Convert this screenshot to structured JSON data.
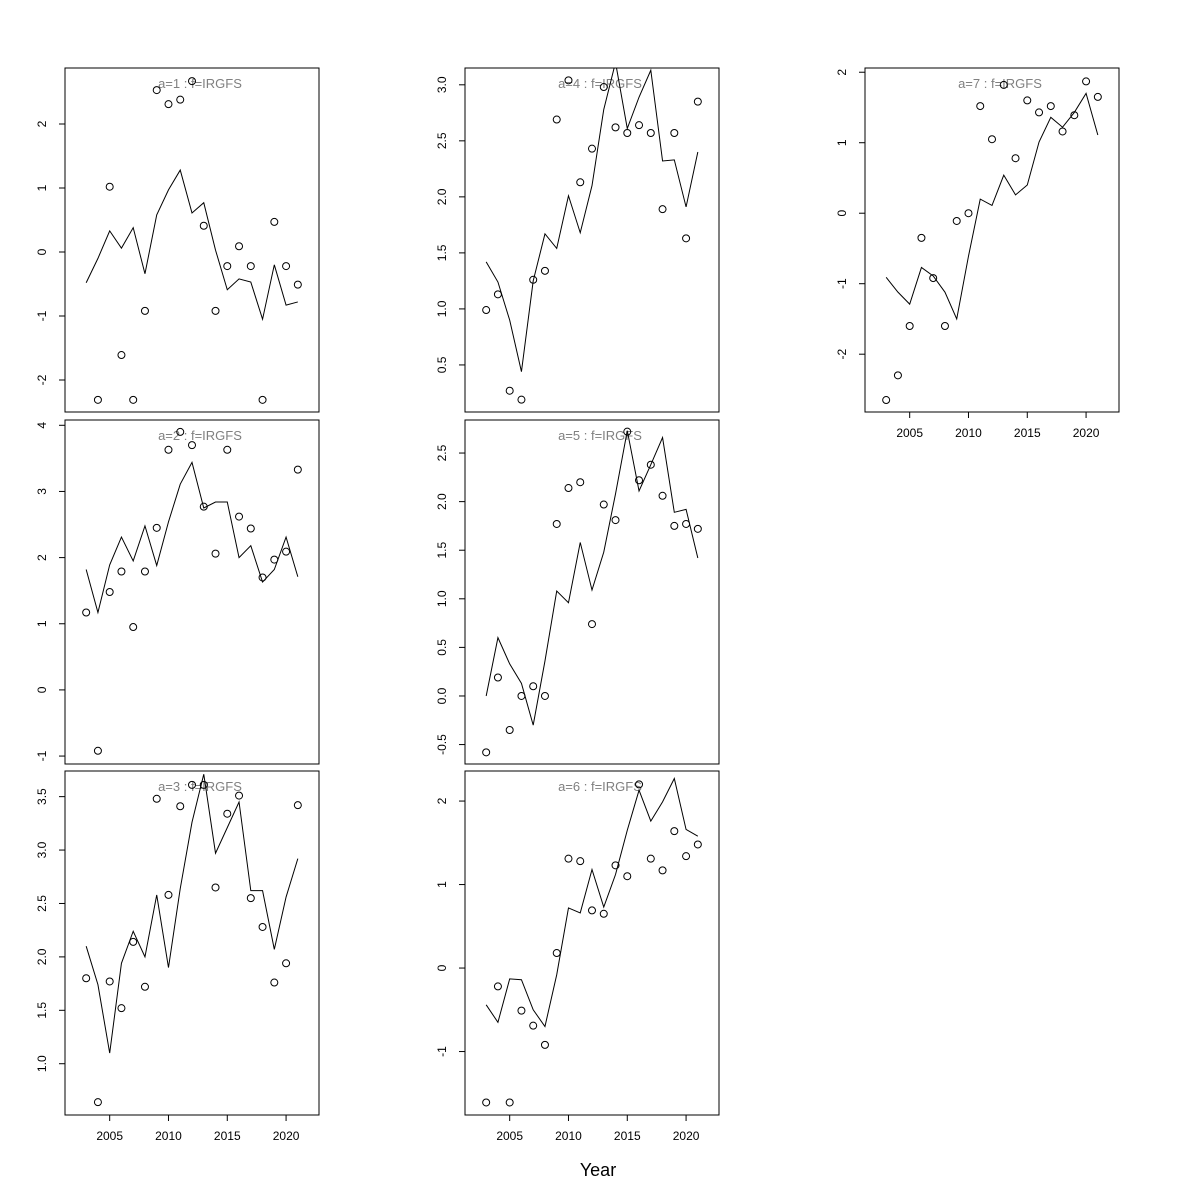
{
  "chart_data": [
    {
      "type": "line",
      "title": "a=1  :  f=IRGFS",
      "x": [
        2003,
        2004,
        2005,
        2006,
        2007,
        2008,
        2009,
        2010,
        2011,
        2012,
        2013,
        2014,
        2015,
        2016,
        2017,
        2018,
        2019,
        2020,
        2021
      ],
      "xlim": [
        2001.2,
        2022.8
      ],
      "ylim": [
        -2.5,
        2.875
      ],
      "yticks": [
        -2,
        -1,
        0,
        1,
        2
      ],
      "series": [
        {
          "style": "line",
          "color": "#000000",
          "values": [
            -0.48,
            -0.1,
            0.33,
            0.06,
            0.38,
            -0.34,
            0.58,
            0.97,
            1.28,
            0.61,
            0.77,
            0.03,
            -0.59,
            -0.42,
            -0.47,
            -1.05,
            -0.2,
            -0.83,
            -0.78
          ]
        },
        {
          "style": "points",
          "color": "#000000",
          "values": [
            null,
            -2.31,
            1.02,
            -1.61,
            -2.31,
            -0.92,
            2.53,
            2.31,
            2.38,
            2.67,
            0.41,
            -0.92,
            -0.22,
            0.09,
            -0.22,
            -2.31,
            0.47,
            -0.22,
            -0.51
          ]
        }
      ]
    },
    {
      "type": "line",
      "title": "a=2  :  f=IRGFS",
      "x": [
        2003,
        2004,
        2005,
        2006,
        2007,
        2008,
        2009,
        2010,
        2011,
        2012,
        2013,
        2014,
        2015,
        2016,
        2017,
        2018,
        2019,
        2020,
        2021
      ],
      "xlim": [
        2001.2,
        2022.8
      ],
      "ylim": [
        -1.12,
        4.08
      ],
      "yticks": [
        -1,
        0,
        1,
        2,
        3,
        4
      ],
      "series": [
        {
          "style": "line",
          "color": "#000000",
          "values": [
            1.82,
            1.17,
            1.89,
            2.31,
            1.95,
            2.48,
            1.88,
            2.54,
            3.11,
            3.44,
            2.75,
            2.84,
            2.84,
            2.0,
            2.18,
            1.63,
            1.82,
            2.31,
            1.71
          ]
        },
        {
          "style": "points",
          "color": "#000000",
          "values": [
            1.17,
            -0.92,
            1.48,
            1.79,
            0.95,
            1.79,
            2.45,
            3.63,
            3.9,
            3.7,
            2.77,
            2.06,
            3.63,
            2.62,
            2.44,
            1.7,
            1.97,
            2.09,
            3.33
          ]
        }
      ]
    },
    {
      "type": "line",
      "title": "a=3  :  f=IRGFS",
      "x": [
        2003,
        2004,
        2005,
        2006,
        2007,
        2008,
        2009,
        2010,
        2011,
        2012,
        2013,
        2014,
        2015,
        2016,
        2017,
        2018,
        2019,
        2020,
        2021
      ],
      "xlim": [
        2001.2,
        2022.8
      ],
      "ylim": [
        0.52,
        3.74
      ],
      "yticks": [
        {
          "value": 1,
          "label": "1.0"
        },
        1.5,
        {
          "value": 2,
          "label": "2.0"
        },
        2.5,
        {
          "value": 3,
          "label": "3.0"
        },
        3.5
      ],
      "xticks": [
        2005,
        2010,
        2015,
        2020
      ],
      "series": [
        {
          "style": "line",
          "color": "#000000",
          "values": [
            2.1,
            1.74,
            1.1,
            1.94,
            2.24,
            2.0,
            2.58,
            1.9,
            2.64,
            3.26,
            3.71,
            2.97,
            3.21,
            3.45,
            2.62,
            2.62,
            2.07,
            2.56,
            2.92
          ]
        },
        {
          "style": "points",
          "color": "#000000",
          "values": [
            1.8,
            0.64,
            1.77,
            1.52,
            2.14,
            1.72,
            3.48,
            2.58,
            3.41,
            3.61,
            3.61,
            2.65,
            3.34,
            3.51,
            2.55,
            2.28,
            1.76,
            1.94,
            3.42
          ]
        }
      ]
    },
    {
      "type": "line",
      "title": "a=4  :  f=IRGFS",
      "x": [
        2003,
        2004,
        2005,
        2006,
        2007,
        2008,
        2009,
        2010,
        2011,
        2012,
        2013,
        2014,
        2015,
        2016,
        2017,
        2018,
        2019,
        2020,
        2021
      ],
      "xlim": [
        2001.2,
        2022.8
      ],
      "ylim": [
        0.08,
        3.15
      ],
      "yticks": [
        0.5,
        {
          "value": 1,
          "label": "1.0"
        },
        1.5,
        {
          "value": 2,
          "label": "2.0"
        },
        2.5,
        {
          "value": 3,
          "label": "3.0"
        }
      ],
      "series": [
        {
          "style": "line",
          "color": "#000000",
          "values": [
            1.42,
            1.24,
            0.9,
            0.44,
            1.25,
            1.67,
            1.54,
            2.01,
            1.68,
            2.1,
            2.78,
            3.2,
            2.61,
            2.89,
            3.13,
            2.32,
            2.33,
            1.91,
            2.4
          ]
        },
        {
          "style": "points",
          "color": "#000000",
          "values": [
            0.99,
            1.13,
            0.27,
            0.19,
            1.26,
            1.34,
            2.69,
            3.04,
            2.13,
            2.43,
            2.98,
            2.62,
            2.57,
            2.64,
            2.57,
            1.89,
            2.57,
            1.63,
            2.85
          ]
        }
      ]
    },
    {
      "type": "line",
      "title": "a=5  :  f=IRGFS",
      "x": [
        2003,
        2004,
        2005,
        2006,
        2007,
        2008,
        2009,
        2010,
        2011,
        2012,
        2013,
        2014,
        2015,
        2016,
        2017,
        2018,
        2019,
        2020,
        2021
      ],
      "xlim": [
        2001.2,
        2022.8
      ],
      "ylim": [
        -0.7,
        2.84
      ],
      "yticks": [
        -0.5,
        {
          "value": 0,
          "label": "0.0"
        },
        0.5,
        {
          "value": 1,
          "label": "1.0"
        },
        1.5,
        {
          "value": 2,
          "label": "2.0"
        },
        2.5
      ],
      "series": [
        {
          "style": "line",
          "color": "#000000",
          "values": [
            0.0,
            0.6,
            0.33,
            0.13,
            -0.3,
            0.36,
            1.08,
            0.96,
            1.58,
            1.09,
            1.48,
            2.08,
            2.73,
            2.11,
            2.38,
            2.66,
            1.89,
            1.92,
            1.42
          ]
        },
        {
          "style": "points",
          "color": "#000000",
          "values": [
            -0.58,
            0.19,
            -0.35,
            0.0,
            0.1,
            0.0,
            1.77,
            2.14,
            2.2,
            0.74,
            1.97,
            1.81,
            2.72,
            2.22,
            2.38,
            2.06,
            1.75,
            1.77,
            1.72
          ]
        }
      ]
    },
    {
      "type": "line",
      "title": "a=6  :  f=IRGFS",
      "xlabel": "Year",
      "x": [
        2003,
        2004,
        2005,
        2006,
        2007,
        2008,
        2009,
        2010,
        2011,
        2012,
        2013,
        2014,
        2015,
        2016,
        2017,
        2018,
        2019,
        2020,
        2021
      ],
      "xlim": [
        2001.2,
        2022.8
      ],
      "ylim": [
        -1.76,
        2.36
      ],
      "yticks": [
        -1,
        0,
        1,
        2
      ],
      "xticks": [
        2005,
        2010,
        2015,
        2020
      ],
      "series": [
        {
          "style": "line",
          "color": "#000000",
          "values": [
            -0.44,
            -0.65,
            -0.13,
            -0.14,
            -0.5,
            -0.7,
            -0.08,
            0.72,
            0.66,
            1.18,
            0.73,
            1.12,
            1.65,
            2.13,
            1.76,
            1.99,
            2.27,
            1.66,
            1.58
          ]
        },
        {
          "style": "points",
          "color": "#000000",
          "values": [
            -1.61,
            -0.22,
            -1.61,
            -0.51,
            -0.69,
            -0.92,
            0.18,
            1.31,
            1.28,
            0.69,
            0.65,
            1.23,
            1.1,
            2.2,
            1.31,
            1.17,
            1.64,
            1.34,
            1.48
          ]
        }
      ]
    },
    {
      "type": "line",
      "title": "a=7  :  f=IRGFS",
      "x": [
        2003,
        2004,
        2005,
        2006,
        2007,
        2008,
        2009,
        2010,
        2011,
        2012,
        2013,
        2014,
        2015,
        2016,
        2017,
        2018,
        2019,
        2020,
        2021
      ],
      "xlim": [
        2001.2,
        2022.8
      ],
      "ylim": [
        -2.82,
        2.06
      ],
      "yticks": [
        -2,
        -1,
        0,
        1,
        2
      ],
      "xticks": [
        2005,
        2010,
        2015,
        2020
      ],
      "series": [
        {
          "style": "line",
          "color": "#000000",
          "values": [
            -0.91,
            -1.12,
            -1.29,
            -0.77,
            -0.89,
            -1.12,
            -1.5,
            -0.61,
            0.2,
            0.11,
            0.54,
            0.26,
            0.4,
            1.01,
            1.36,
            1.22,
            1.43,
            1.7,
            1.11
          ]
        },
        {
          "style": "points",
          "color": "#000000",
          "values": [
            -2.65,
            -2.3,
            -1.6,
            -0.35,
            -0.92,
            -1.6,
            -0.11,
            0.0,
            1.52,
            1.05,
            1.82,
            0.78,
            1.6,
            1.43,
            1.52,
            1.16,
            1.39,
            1.87,
            1.65
          ]
        }
      ]
    }
  ]
}
